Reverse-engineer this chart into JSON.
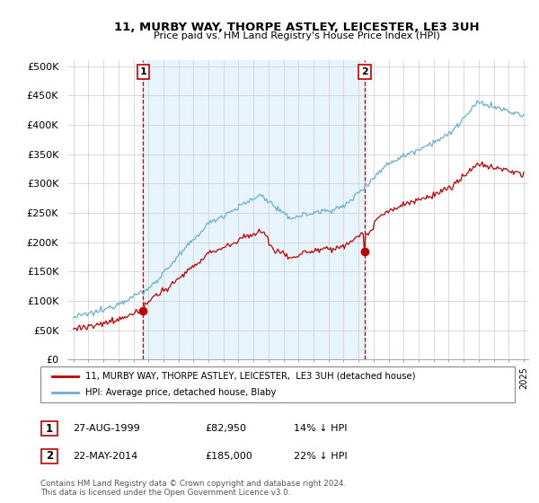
{
  "title": "11, MURBY WAY, THORPE ASTLEY, LEICESTER, LE3 3UH",
  "subtitle": "Price paid vs. HM Land Registry's House Price Index (HPI)",
  "ylabel_ticks": [
    "£0",
    "£50K",
    "£100K",
    "£150K",
    "£200K",
    "£250K",
    "£300K",
    "£350K",
    "£400K",
    "£450K",
    "£500K"
  ],
  "ytick_values": [
    0,
    50000,
    100000,
    150000,
    200000,
    250000,
    300000,
    350000,
    400000,
    450000,
    500000
  ],
  "hpi_color": "#6baed6",
  "price_color": "#c00000",
  "vline_color": "#c00000",
  "shade_color": "#ddeeff",
  "sale1_year": 1999.65,
  "sale1_price": 82950,
  "sale2_year": 2014.4,
  "sale2_price": 185000,
  "legend_label1": "11, MURBY WAY, THORPE ASTLEY, LEICESTER,  LE3 3UH (detached house)",
  "legend_label2": "HPI: Average price, detached house, Blaby",
  "table_row1": [
    "1",
    "27-AUG-1999",
    "£82,950",
    "14% ↓ HPI"
  ],
  "table_row2": [
    "2",
    "22-MAY-2014",
    "£185,000",
    "22% ↓ HPI"
  ],
  "footer": "Contains HM Land Registry data © Crown copyright and database right 2024.\nThis data is licensed under the Open Government Licence v3.0.",
  "grid_color": "#cccccc",
  "bg_shade": "#e8f4fc"
}
